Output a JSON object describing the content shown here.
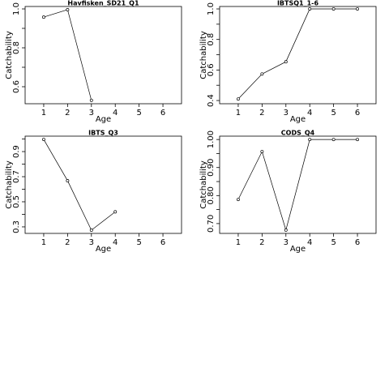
{
  "chart_data": [
    {
      "type": "line",
      "title": "Havfisken_SD21_Q1",
      "x_label": "Age",
      "y_label": "Catchability",
      "x": [
        1,
        2,
        3
      ],
      "values": [
        0.958,
        0.996,
        0.53
      ],
      "xlim": [
        0.22,
        6.78
      ],
      "xticks": [
        1,
        2,
        3,
        4,
        5,
        6
      ],
      "ylim": [
        0.5125,
        1.0125
      ],
      "yticks": [
        0.6,
        0.8,
        {
          "value": 1,
          "label": "1.0"
        }
      ],
      "yminorticks": [
        0.7,
        0.9
      ],
      "color": "#000000"
    },
    {
      "type": "line",
      "title": "IBTSQ1_1-6",
      "x_label": "Age",
      "y_label": "Catchability",
      "x": [
        1,
        2,
        3,
        4,
        5,
        6
      ],
      "values": [
        0.41,
        0.574,
        0.654,
        1,
        1,
        1
      ],
      "xlim": [
        0.22,
        6.78
      ],
      "xticks": [
        1,
        2,
        3,
        4,
        5,
        6
      ],
      "ylim": [
        0.379,
        1.016
      ],
      "yticks": [
        0.4,
        0.6,
        0.8,
        {
          "value": 1,
          "label": "1.0"
        }
      ],
      "yminorticks": [
        0.5,
        0.7,
        0.9
      ],
      "color": "#000000"
    },
    {
      "type": "line",
      "title": "IBTS_Q3",
      "x_label": "Age",
      "y_label": "Catchability",
      "x": [
        1,
        2,
        3,
        4
      ],
      "values": [
        0.997,
        0.668,
        0.274,
        0.42
      ],
      "xlim": [
        0.22,
        6.78
      ],
      "xticks": [
        1,
        2,
        3,
        4,
        5,
        6
      ],
      "ylim": [
        0.248,
        1.023
      ],
      "yticks": [
        0.3,
        0.5,
        0.7,
        0.9
      ],
      "yminorticks": [
        0.4,
        0.6,
        0.8,
        1
      ],
      "color": "#000000"
    },
    {
      "type": "line",
      "title": "CODS_Q4",
      "x_label": "Age",
      "y_label": "Catchability",
      "x": [
        1,
        2,
        3,
        4,
        5,
        6
      ],
      "values": [
        0.786,
        0.957,
        0.677,
        1,
        1,
        1
      ],
      "xlim": [
        0.22,
        6.78
      ],
      "xticks": [
        1,
        2,
        3,
        4,
        5,
        6
      ],
      "ylim": [
        0.665,
        1.012
      ],
      "yticks": [
        {
          "value": 0.7,
          "label": "0.70"
        },
        {
          "value": 0.8,
          "label": "0.80"
        },
        {
          "value": 0.9,
          "label": "0.90"
        },
        {
          "value": 1,
          "label": "1.00"
        }
      ],
      "yminorticks": [
        0.75,
        0.85,
        0.95
      ],
      "color": "#000000"
    }
  ]
}
